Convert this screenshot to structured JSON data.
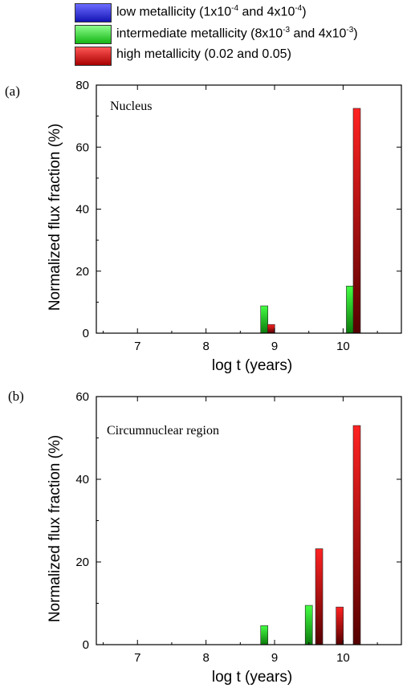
{
  "legend": {
    "low": {
      "text": "low metallicity (1x10",
      "e1": "-4",
      "mid": " and 4x10",
      "e2": "-4",
      "end": ")"
    },
    "intermediate": {
      "text": "intermediate metallicity (8x10",
      "e1": "-3",
      "mid": " and 4x10",
      "e2": "-3",
      "end": ")"
    },
    "high": {
      "text": "high metallicity (0.02 and 0.05)"
    }
  },
  "colors": {
    "low": "#2a2ae0",
    "intermediate": "#22dd22",
    "high": "#ee1111"
  },
  "panels": [
    {
      "letter": "(a)",
      "annotation": "Nucleus"
    },
    {
      "letter": "(b)",
      "annotation": "Circumnuclear region"
    }
  ],
  "chart_data": [
    {
      "type": "bar",
      "annotation": "Nucleus",
      "xlabel": "log t (years)",
      "ylabel": "Normalized flux fraction (%)",
      "xlim": [
        6.4,
        10.85
      ],
      "ylim": [
        0,
        80
      ],
      "xticks": [
        7,
        8,
        9,
        10
      ],
      "yticks": [
        0,
        20,
        40,
        60,
        80
      ],
      "series": [
        {
          "name": "low metallicity",
          "color": "low",
          "points": []
        },
        {
          "name": "intermediate metallicity",
          "color": "intermediate",
          "points": [
            {
              "x": 8.85,
              "y": 8.8
            },
            {
              "x": 10.1,
              "y": 15.2
            }
          ]
        },
        {
          "name": "high metallicity",
          "color": "high",
          "points": [
            {
              "x": 8.95,
              "y": 2.8
            },
            {
              "x": 10.2,
              "y": 72.5
            }
          ]
        }
      ]
    },
    {
      "type": "bar",
      "annotation": "Circumnuclear region",
      "xlabel": "log t (years)",
      "ylabel": "Normalized flux fraction (%)",
      "xlim": [
        6.4,
        10.85
      ],
      "ylim": [
        0,
        60
      ],
      "xticks": [
        7,
        8,
        9,
        10
      ],
      "yticks": [
        0,
        20,
        40,
        60
      ],
      "series": [
        {
          "name": "low metallicity",
          "color": "low",
          "points": []
        },
        {
          "name": "intermediate metallicity",
          "color": "intermediate",
          "points": [
            {
              "x": 8.85,
              "y": 4.6
            },
            {
              "x": 9.5,
              "y": 9.5
            }
          ]
        },
        {
          "name": "high metallicity",
          "color": "high",
          "points": [
            {
              "x": 9.65,
              "y": 23.2
            },
            {
              "x": 9.95,
              "y": 9.1
            },
            {
              "x": 10.2,
              "y": 53.0
            }
          ]
        }
      ]
    }
  ]
}
